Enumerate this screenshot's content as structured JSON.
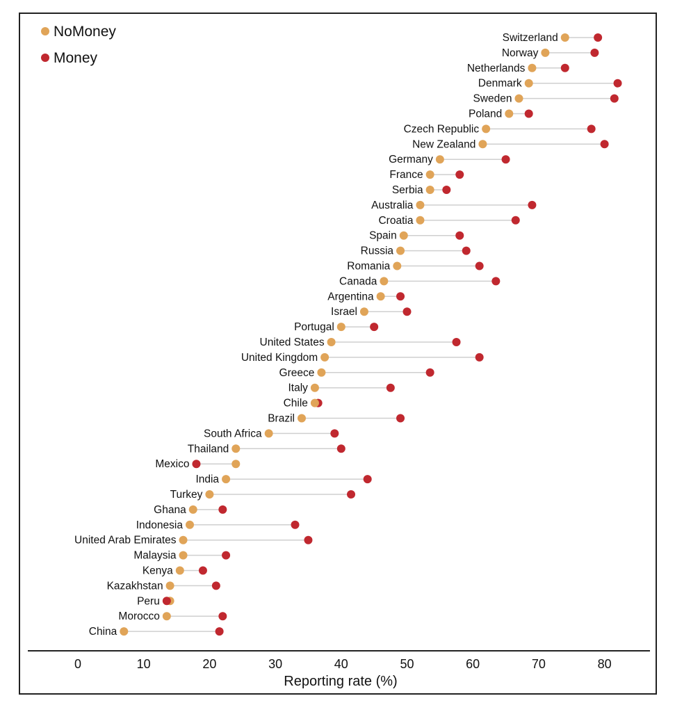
{
  "chart_data": {
    "type": "scatter",
    "subtype": "dumbbell",
    "xlabel": "Reporting rate (%)",
    "xlim": [
      -5,
      85
    ],
    "xticks": [
      0,
      10,
      20,
      30,
      40,
      50,
      60,
      70,
      80
    ],
    "legend_position": "top-left",
    "series": [
      {
        "name": "NoMoney",
        "color": "#e0a458"
      },
      {
        "name": "Money",
        "color": "#c0282f"
      }
    ],
    "countries": [
      {
        "name": "Switzerland",
        "nomoney": 74,
        "money": 79
      },
      {
        "name": "Norway",
        "nomoney": 71,
        "money": 78.5
      },
      {
        "name": "Netherlands",
        "nomoney": 69,
        "money": 74
      },
      {
        "name": "Denmark",
        "nomoney": 68.5,
        "money": 82
      },
      {
        "name": "Sweden",
        "nomoney": 67,
        "money": 81.5
      },
      {
        "name": "Poland",
        "nomoney": 65.5,
        "money": 68.5
      },
      {
        "name": "Czech Republic",
        "nomoney": 62,
        "money": 78
      },
      {
        "name": "New Zealand",
        "nomoney": 61.5,
        "money": 80
      },
      {
        "name": "Germany",
        "nomoney": 55,
        "money": 65
      },
      {
        "name": "France",
        "nomoney": 53.5,
        "money": 58
      },
      {
        "name": "Serbia",
        "nomoney": 53.5,
        "money": 56
      },
      {
        "name": "Australia",
        "nomoney": 52,
        "money": 69
      },
      {
        "name": "Croatia",
        "nomoney": 52,
        "money": 66.5
      },
      {
        "name": "Spain",
        "nomoney": 49.5,
        "money": 58
      },
      {
        "name": "Russia",
        "nomoney": 49,
        "money": 59
      },
      {
        "name": "Romania",
        "nomoney": 48.5,
        "money": 61
      },
      {
        "name": "Canada",
        "nomoney": 46.5,
        "money": 63.5
      },
      {
        "name": "Argentina",
        "nomoney": 46,
        "money": 49
      },
      {
        "name": "Israel",
        "nomoney": 43.5,
        "money": 50
      },
      {
        "name": "Portugal",
        "nomoney": 40,
        "money": 45
      },
      {
        "name": "United States",
        "nomoney": 38.5,
        "money": 57.5
      },
      {
        "name": "United Kingdom",
        "nomoney": 37.5,
        "money": 61
      },
      {
        "name": "Greece",
        "nomoney": 37,
        "money": 53.5
      },
      {
        "name": "Italy",
        "nomoney": 36,
        "money": 47.5
      },
      {
        "name": "Chile",
        "nomoney": 36,
        "money": 36.5
      },
      {
        "name": "Brazil",
        "nomoney": 34,
        "money": 49
      },
      {
        "name": "South Africa",
        "nomoney": 29,
        "money": 39
      },
      {
        "name": "Thailand",
        "nomoney": 24,
        "money": 40
      },
      {
        "name": "Mexico",
        "nomoney": 24,
        "money": 18
      },
      {
        "name": "India",
        "nomoney": 22.5,
        "money": 44
      },
      {
        "name": "Turkey",
        "nomoney": 20,
        "money": 41.5
      },
      {
        "name": "Ghana",
        "nomoney": 17.5,
        "money": 22
      },
      {
        "name": "Indonesia",
        "nomoney": 17,
        "money": 33
      },
      {
        "name": "United Arab Emirates",
        "nomoney": 16,
        "money": 35
      },
      {
        "name": "Malaysia",
        "nomoney": 16,
        "money": 22.5
      },
      {
        "name": "Kenya",
        "nomoney": 15.5,
        "money": 19
      },
      {
        "name": "Kazakhstan",
        "nomoney": 14,
        "money": 21
      },
      {
        "name": "Peru",
        "nomoney": 14,
        "money": 13.5
      },
      {
        "name": "Morocco",
        "nomoney": 13.5,
        "money": 22
      },
      {
        "name": "China",
        "nomoney": 7,
        "money": 21.5
      }
    ]
  }
}
